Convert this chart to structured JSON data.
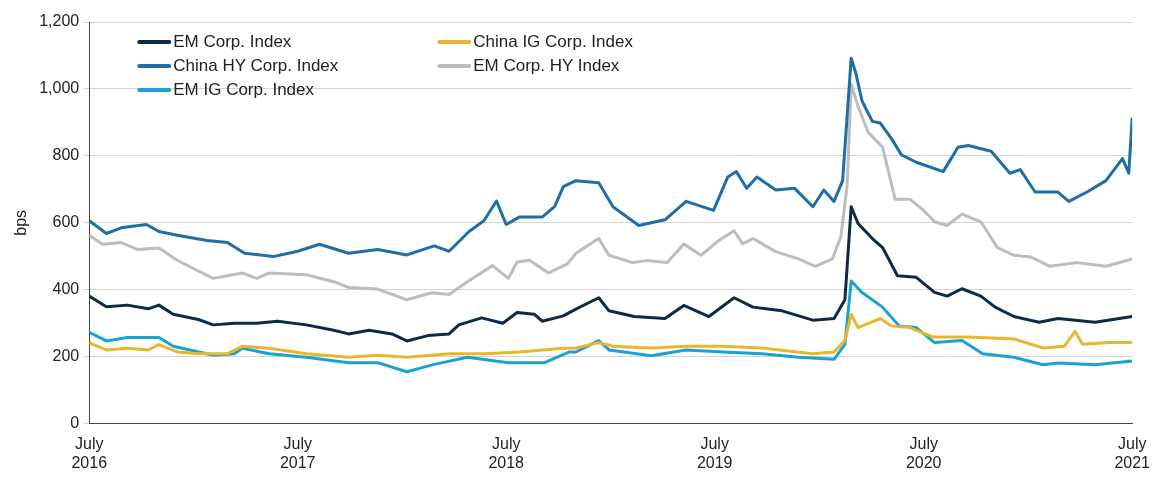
{
  "chart_data": {
    "type": "line",
    "ylabel": "bps",
    "legend": "top left",
    "grid": "y",
    "marker": "none",
    "line_style": "solid",
    "xlim": [
      "2016-07-01",
      "2021-07-01"
    ],
    "xticks": [
      {
        "value": "2016-07-01",
        "label": "July 2016"
      },
      {
        "value": "2017-07-01",
        "label": "July 2017"
      },
      {
        "value": "2018-07-01",
        "label": "July 2018"
      },
      {
        "value": "2019-07-01",
        "label": "July 2019"
      },
      {
        "value": "2020-07-01",
        "label": "July 2020"
      },
      {
        "value": "2021-07-01",
        "label": "July 2021"
      }
    ],
    "ylim": [
      0,
      1200
    ],
    "yticks": [
      0,
      200,
      400,
      600,
      800,
      {
        "value": 1000,
        "label": "1,000"
      },
      {
        "value": 1200,
        "label": "1,200"
      }
    ],
    "series": [
      {
        "name": "EM Corp. Index",
        "color": "#0d2a47",
        "x": [
          "2016-07-01",
          "2016-07-31",
          "2016-09-06",
          "2016-10-12",
          "2016-10-31",
          "2016-11-25",
          "2017-01-08",
          "2017-02-03",
          "2017-03-12",
          "2017-04-20",
          "2017-05-27",
          "2017-07-16",
          "2017-09-02",
          "2017-09-28",
          "2017-11-03",
          "2017-12-13",
          "2018-01-08",
          "2018-02-14",
          "2018-03-23",
          "2018-04-09",
          "2018-05-19",
          "2018-06-25",
          "2018-07-20",
          "2018-08-19",
          "2018-09-02",
          "2018-10-09",
          "2018-10-31",
          "2018-12-10",
          "2018-12-28",
          "2019-02-10",
          "2019-04-05",
          "2019-05-08",
          "2019-06-21",
          "2019-08-04",
          "2019-09-06",
          "2019-10-27",
          "2019-12-20",
          "2020-01-26",
          "2020-02-14",
          "2020-02-25",
          "2020-03-08",
          "2020-04-02",
          "2020-04-20",
          "2020-05-16",
          "2020-06-18",
          "2020-07-20",
          "2020-08-11",
          "2020-09-06",
          "2020-10-09",
          "2020-11-03",
          "2020-12-06",
          "2021-01-19",
          "2021-02-21",
          "2021-04-27",
          "2021-07-01"
        ],
        "values": [
          381,
          349,
          354,
          343,
          354,
          327,
          311,
          295,
          300,
          300,
          306,
          295,
          279,
          268,
          279,
          268,
          247,
          263,
          268,
          295,
          316,
          300,
          332,
          327,
          306,
          322,
          342,
          376,
          337,
          320,
          314,
          353,
          320,
          376,
          348,
          337,
          309,
          314,
          370,
          648,
          598,
          553,
          526,
          442,
          437,
          392,
          381,
          403,
          381,
          348,
          320,
          303,
          314,
          303,
          320
        ]
      },
      {
        "name": "China IG Corp. Index",
        "color": "#e8b730",
        "x": [
          "2016-07-01",
          "2016-07-31",
          "2016-09-06",
          "2016-10-12",
          "2016-10-31",
          "2016-12-02",
          "2017-01-08",
          "2017-02-28",
          "2017-03-26",
          "2017-05-12",
          "2017-07-16",
          "2017-09-28",
          "2017-11-18",
          "2018-01-08",
          "2018-03-23",
          "2018-05-23",
          "2018-07-24",
          "2018-10-09",
          "2018-10-31",
          "2018-12-10",
          "2019-01-04",
          "2019-03-12",
          "2019-05-12",
          "2019-07-16",
          "2019-09-21",
          "2019-12-20",
          "2020-01-26",
          "2020-02-14",
          "2020-02-25",
          "2020-03-08",
          "2020-04-16",
          "2020-05-05",
          "2020-06-07",
          "2020-07-16",
          "2020-09-17",
          "2020-12-06",
          "2021-01-26",
          "2021-03-04",
          "2021-03-23",
          "2021-04-05",
          "2021-05-23",
          "2021-07-01"
        ],
        "values": [
          241,
          220,
          225,
          220,
          236,
          214,
          209,
          209,
          231,
          225,
          209,
          198,
          204,
          198,
          209,
          209,
          214,
          225,
          226,
          242,
          231,
          226,
          231,
          231,
          226,
          209,
          214,
          248,
          326,
          287,
          314,
          292,
          287,
          259,
          259,
          253,
          226,
          231,
          276,
          237,
          242,
          242
        ]
      },
      {
        "name": "China HY Corp. Index",
        "color": "#1f6ea6",
        "x": [
          "2016-07-01",
          "2016-07-31",
          "2016-08-26",
          "2016-10-09",
          "2016-10-31",
          "2016-12-02",
          "2017-01-23",
          "2017-02-28",
          "2017-03-30",
          "2017-05-19",
          "2017-07-01",
          "2017-08-08",
          "2017-09-28",
          "2017-11-18",
          "2018-01-08",
          "2018-02-25",
          "2018-03-23",
          "2018-04-27",
          "2018-05-23",
          "2018-06-14",
          "2018-07-01",
          "2018-07-24",
          "2018-09-02",
          "2018-09-24",
          "2018-10-09",
          "2018-10-31",
          "2018-12-10",
          "2019-01-04",
          "2019-02-18",
          "2019-04-05",
          "2019-05-12",
          "2019-06-29",
          "2019-07-24",
          "2019-08-08",
          "2019-08-26",
          "2019-09-13",
          "2019-10-16",
          "2019-11-18",
          "2019-12-20",
          "2020-01-08",
          "2020-01-26",
          "2020-02-10",
          "2020-02-25",
          "2020-03-04",
          "2020-03-15",
          "2020-04-02",
          "2020-04-16",
          "2020-05-05",
          "2020-05-23",
          "2020-06-18",
          "2020-08-04",
          "2020-08-30",
          "2020-09-17",
          "2020-10-27",
          "2020-11-29",
          "2020-12-17",
          "2021-01-12",
          "2021-02-21",
          "2021-03-12",
          "2021-04-13",
          "2021-05-16",
          "2021-06-14",
          "2021-06-25",
          "2021-07-01"
        ],
        "values": [
          606,
          568,
          585,
          595,
          574,
          563,
          547,
          541,
          509,
          499,
          515,
          536,
          509,
          520,
          504,
          531,
          515,
          574,
          606,
          665,
          595,
          617,
          617,
          649,
          708,
          726,
          720,
          648,
          592,
          609,
          664,
          637,
          737,
          753,
          703,
          737,
          698,
          703,
          648,
          698,
          664,
          726,
          1092,
          1048,
          964,
          903,
          898,
          853,
          803,
          781,
          753,
          826,
          831,
          814,
          748,
          759,
          692,
          692,
          664,
          692,
          726,
          792,
          748,
          914
        ]
      },
      {
        "name": "EM Corp. HY Index",
        "color": "#bdbdbd",
        "x": [
          "2016-07-01",
          "2016-07-24",
          "2016-08-26",
          "2016-09-24",
          "2016-10-31",
          "2016-12-02",
          "2017-01-08",
          "2017-02-03",
          "2017-03-26",
          "2017-04-20",
          "2017-05-12",
          "2017-07-16",
          "2017-09-02",
          "2017-09-28",
          "2017-11-18",
          "2018-01-08",
          "2018-02-21",
          "2018-03-23",
          "2018-04-24",
          "2018-06-07",
          "2018-07-05",
          "2018-07-20",
          "2018-08-11",
          "2018-09-13",
          "2018-10-16",
          "2018-10-31",
          "2018-12-10",
          "2018-12-28",
          "2019-02-07",
          "2019-03-04",
          "2019-04-09",
          "2019-05-08",
          "2019-06-07",
          "2019-07-09",
          "2019-08-04",
          "2019-08-19",
          "2019-09-06",
          "2019-10-16",
          "2019-11-25",
          "2019-12-24",
          "2020-01-23",
          "2020-02-07",
          "2020-02-18",
          "2020-02-25",
          "2020-03-08",
          "2020-03-26",
          "2020-04-20",
          "2020-05-12",
          "2020-06-07",
          "2020-07-01",
          "2020-07-20",
          "2020-08-11",
          "2020-09-06",
          "2020-10-09",
          "2020-11-07",
          "2020-12-06",
          "2021-01-04",
          "2021-02-07",
          "2021-03-26",
          "2021-05-16",
          "2021-07-01"
        ],
        "values": [
          563,
          536,
          541,
          520,
          525,
          488,
          456,
          434,
          450,
          434,
          450,
          445,
          424,
          407,
          402,
          370,
          391,
          386,
          424,
          472,
          434,
          483,
          488,
          450,
          477,
          509,
          553,
          503,
          481,
          487,
          481,
          537,
          503,
          548,
          576,
          537,
          553,
          514,
          492,
          470,
          492,
          559,
          714,
          1014,
          948,
          870,
          826,
          670,
          670,
          637,
          603,
          592,
          626,
          603,
          526,
          503,
          498,
          470,
          481,
          470,
          492
        ]
      },
      {
        "name": "EM IG Corp. Index",
        "color": "#1aa3d0",
        "x": [
          "2016-07-01",
          "2016-07-31",
          "2016-09-06",
          "2016-10-31",
          "2016-11-25",
          "2017-02-03",
          "2017-03-12",
          "2017-03-26",
          "2017-05-12",
          "2017-07-16",
          "2017-09-28",
          "2017-11-18",
          "2018-01-08",
          "2018-02-25",
          "2018-04-24",
          "2018-07-05",
          "2018-09-06",
          "2018-10-20",
          "2018-10-31",
          "2018-12-10",
          "2018-12-28",
          "2019-03-12",
          "2019-05-12",
          "2019-07-16",
          "2019-09-21",
          "2019-11-25",
          "2020-01-26",
          "2020-02-14",
          "2020-02-25",
          "2020-03-15",
          "2020-04-20",
          "2020-05-19",
          "2020-06-18",
          "2020-07-20",
          "2020-09-06",
          "2020-10-12",
          "2020-12-06",
          "2021-01-26",
          "2021-02-21",
          "2021-04-27",
          "2021-07-01"
        ],
        "values": [
          273,
          247,
          257,
          257,
          231,
          204,
          209,
          225,
          209,
          198,
          182,
          182,
          155,
          177,
          198,
          182,
          182,
          214,
          214,
          248,
          220,
          203,
          220,
          214,
          209,
          198,
          192,
          237,
          426,
          392,
          348,
          292,
          287,
          242,
          248,
          209,
          198,
          176,
          181,
          176,
          187
        ]
      }
    ]
  }
}
